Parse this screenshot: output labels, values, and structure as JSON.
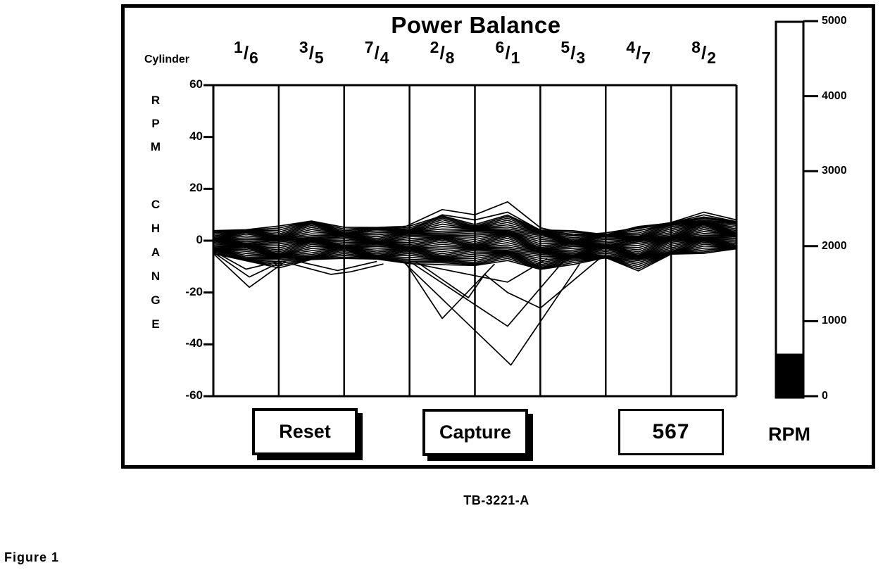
{
  "colors": {
    "foreground": "#000000",
    "background": "#ffffff"
  },
  "controls": {
    "reset_label": "Reset",
    "capture_label": "Capture",
    "rpm_value": "567"
  },
  "captions": {
    "part_code": "TB-3221-A",
    "figure_label": "Figure 1"
  },
  "chart_data": {
    "type": "line",
    "title": "Power Balance",
    "xlabel": "Cylinder",
    "ylabel": "RPM CHANGE",
    "ylabel_lines": [
      "RPM",
      "CHANGE"
    ],
    "ylim": [
      -60,
      60
    ],
    "yticks": [
      60,
      40,
      20,
      0,
      -20,
      -40,
      -60
    ],
    "grid": "vertical column dividers only",
    "cylinder_pairs": [
      [
        "1",
        "6"
      ],
      [
        "3",
        "5"
      ],
      [
        "7",
        "4"
      ],
      [
        "2",
        "8"
      ],
      [
        "6",
        "1"
      ],
      [
        "5",
        "3"
      ],
      [
        "4",
        "7"
      ],
      [
        "8",
        "2"
      ]
    ],
    "band": {
      "description": "dense bundle of overlapping RPM-change traces; envelope in RPM at x stations given in cylinder-column units 0-8",
      "x": [
        0,
        0.5,
        1,
        1.5,
        2,
        2.5,
        3,
        3.5,
        4,
        4.5,
        5,
        5.5,
        6,
        6.5,
        7,
        7.5,
        8
      ],
      "top": [
        3,
        5,
        5,
        8,
        5,
        5,
        6,
        9,
        7,
        9,
        5,
        3,
        3,
        5,
        7,
        10,
        7
      ],
      "bottom": [
        -5,
        -8,
        -10,
        -8,
        -6,
        -8,
        -8,
        -10,
        -9,
        -8,
        -11,
        -9,
        -7,
        -11,
        -6,
        -4,
        -4
      ],
      "n_lines": 34
    },
    "outliers": [
      [
        [
          0,
          -5
        ],
        [
          0.55,
          -18
        ],
        [
          1.1,
          -8
        ]
      ],
      [
        [
          0,
          -4.5
        ],
        [
          0.55,
          -14
        ],
        [
          1.05,
          -8
        ]
      ],
      [
        [
          0,
          -4
        ],
        [
          0.5,
          -11
        ],
        [
          1,
          -8
        ]
      ],
      [
        [
          1.2,
          -9
        ],
        [
          1.8,
          -13
        ],
        [
          2.1,
          -12
        ],
        [
          2.6,
          -9
        ]
      ],
      [
        [
          1.3,
          -8
        ],
        [
          1.9,
          -11.5
        ],
        [
          2.5,
          -8
        ]
      ],
      [
        [
          2.9,
          5
        ],
        [
          3.5,
          12
        ],
        [
          4,
          10
        ],
        [
          4.5,
          15
        ],
        [
          5,
          5
        ],
        [
          5.5,
          2
        ],
        [
          6,
          3
        ],
        [
          6.5,
          5
        ],
        [
          7,
          7
        ],
        [
          7.5,
          11
        ],
        [
          8,
          8
        ]
      ],
      [
        [
          3,
          4
        ],
        [
          3.5,
          10
        ],
        [
          4,
          8
        ],
        [
          4.5,
          11
        ],
        [
          5,
          4
        ],
        [
          5.3,
          2
        ]
      ],
      [
        [
          6,
          2
        ],
        [
          6.5,
          4
        ],
        [
          7,
          6
        ],
        [
          7.5,
          9
        ],
        [
          8,
          6.5
        ]
      ],
      [
        [
          2.9,
          -8
        ],
        [
          4.55,
          -48
        ],
        [
          5.6,
          -9
        ]
      ],
      [
        [
          3,
          -8
        ],
        [
          4.5,
          -33
        ],
        [
          5.35,
          -8
        ]
      ],
      [
        [
          3.1,
          -9
        ],
        [
          4.5,
          -16
        ],
        [
          5.1,
          -7
        ]
      ],
      [
        [
          2.95,
          -9
        ],
        [
          3.5,
          -30
        ],
        [
          4.3,
          -9
        ]
      ],
      [
        [
          3.1,
          -8
        ],
        [
          3.9,
          -22
        ],
        [
          4.15,
          -13
        ],
        [
          4.5,
          -20
        ],
        [
          5,
          -26
        ],
        [
          5.9,
          -7
        ]
      ]
    ],
    "gauge": {
      "label": "RPM",
      "min": 0,
      "max": 5000,
      "ticks": [
        5000,
        4000,
        3000,
        2000,
        1000,
        0
      ],
      "value": 567
    }
  }
}
